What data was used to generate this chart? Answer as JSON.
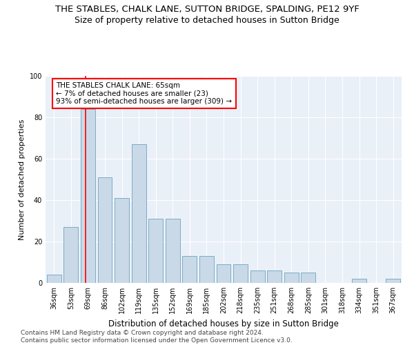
{
  "title": "THE STABLES, CHALK LANE, SUTTON BRIDGE, SPALDING, PE12 9YF",
  "subtitle": "Size of property relative to detached houses in Sutton Bridge",
  "xlabel": "Distribution of detached houses by size in Sutton Bridge",
  "ylabel": "Number of detached properties",
  "categories": [
    "36sqm",
    "53sqm",
    "69sqm",
    "86sqm",
    "102sqm",
    "119sqm",
    "135sqm",
    "152sqm",
    "169sqm",
    "185sqm",
    "202sqm",
    "218sqm",
    "235sqm",
    "251sqm",
    "268sqm",
    "285sqm",
    "301sqm",
    "318sqm",
    "334sqm",
    "351sqm",
    "367sqm"
  ],
  "values": [
    4,
    27,
    84,
    51,
    41,
    67,
    31,
    31,
    13,
    13,
    9,
    9,
    6,
    6,
    5,
    5,
    0,
    0,
    2,
    0,
    2
  ],
  "bar_color": "#c9d9e8",
  "bar_edge_color": "#7bacc4",
  "annotation_text": "THE STABLES CHALK LANE: 65sqm\n← 7% of detached houses are smaller (23)\n93% of semi-detached houses are larger (309) →",
  "annotation_box_color": "white",
  "annotation_box_edge_color": "red",
  "marker_line_color": "red",
  "ylim": [
    0,
    100
  ],
  "yticks": [
    0,
    20,
    40,
    60,
    80,
    100
  ],
  "bg_color": "#eaf0f8",
  "footer": "Contains HM Land Registry data © Crown copyright and database right 2024.\nContains public sector information licensed under the Open Government Licence v3.0.",
  "title_fontsize": 9.5,
  "subtitle_fontsize": 9,
  "xlabel_fontsize": 8.5,
  "ylabel_fontsize": 8,
  "tick_fontsize": 7,
  "annotation_fontsize": 7.5,
  "footer_fontsize": 6.5
}
